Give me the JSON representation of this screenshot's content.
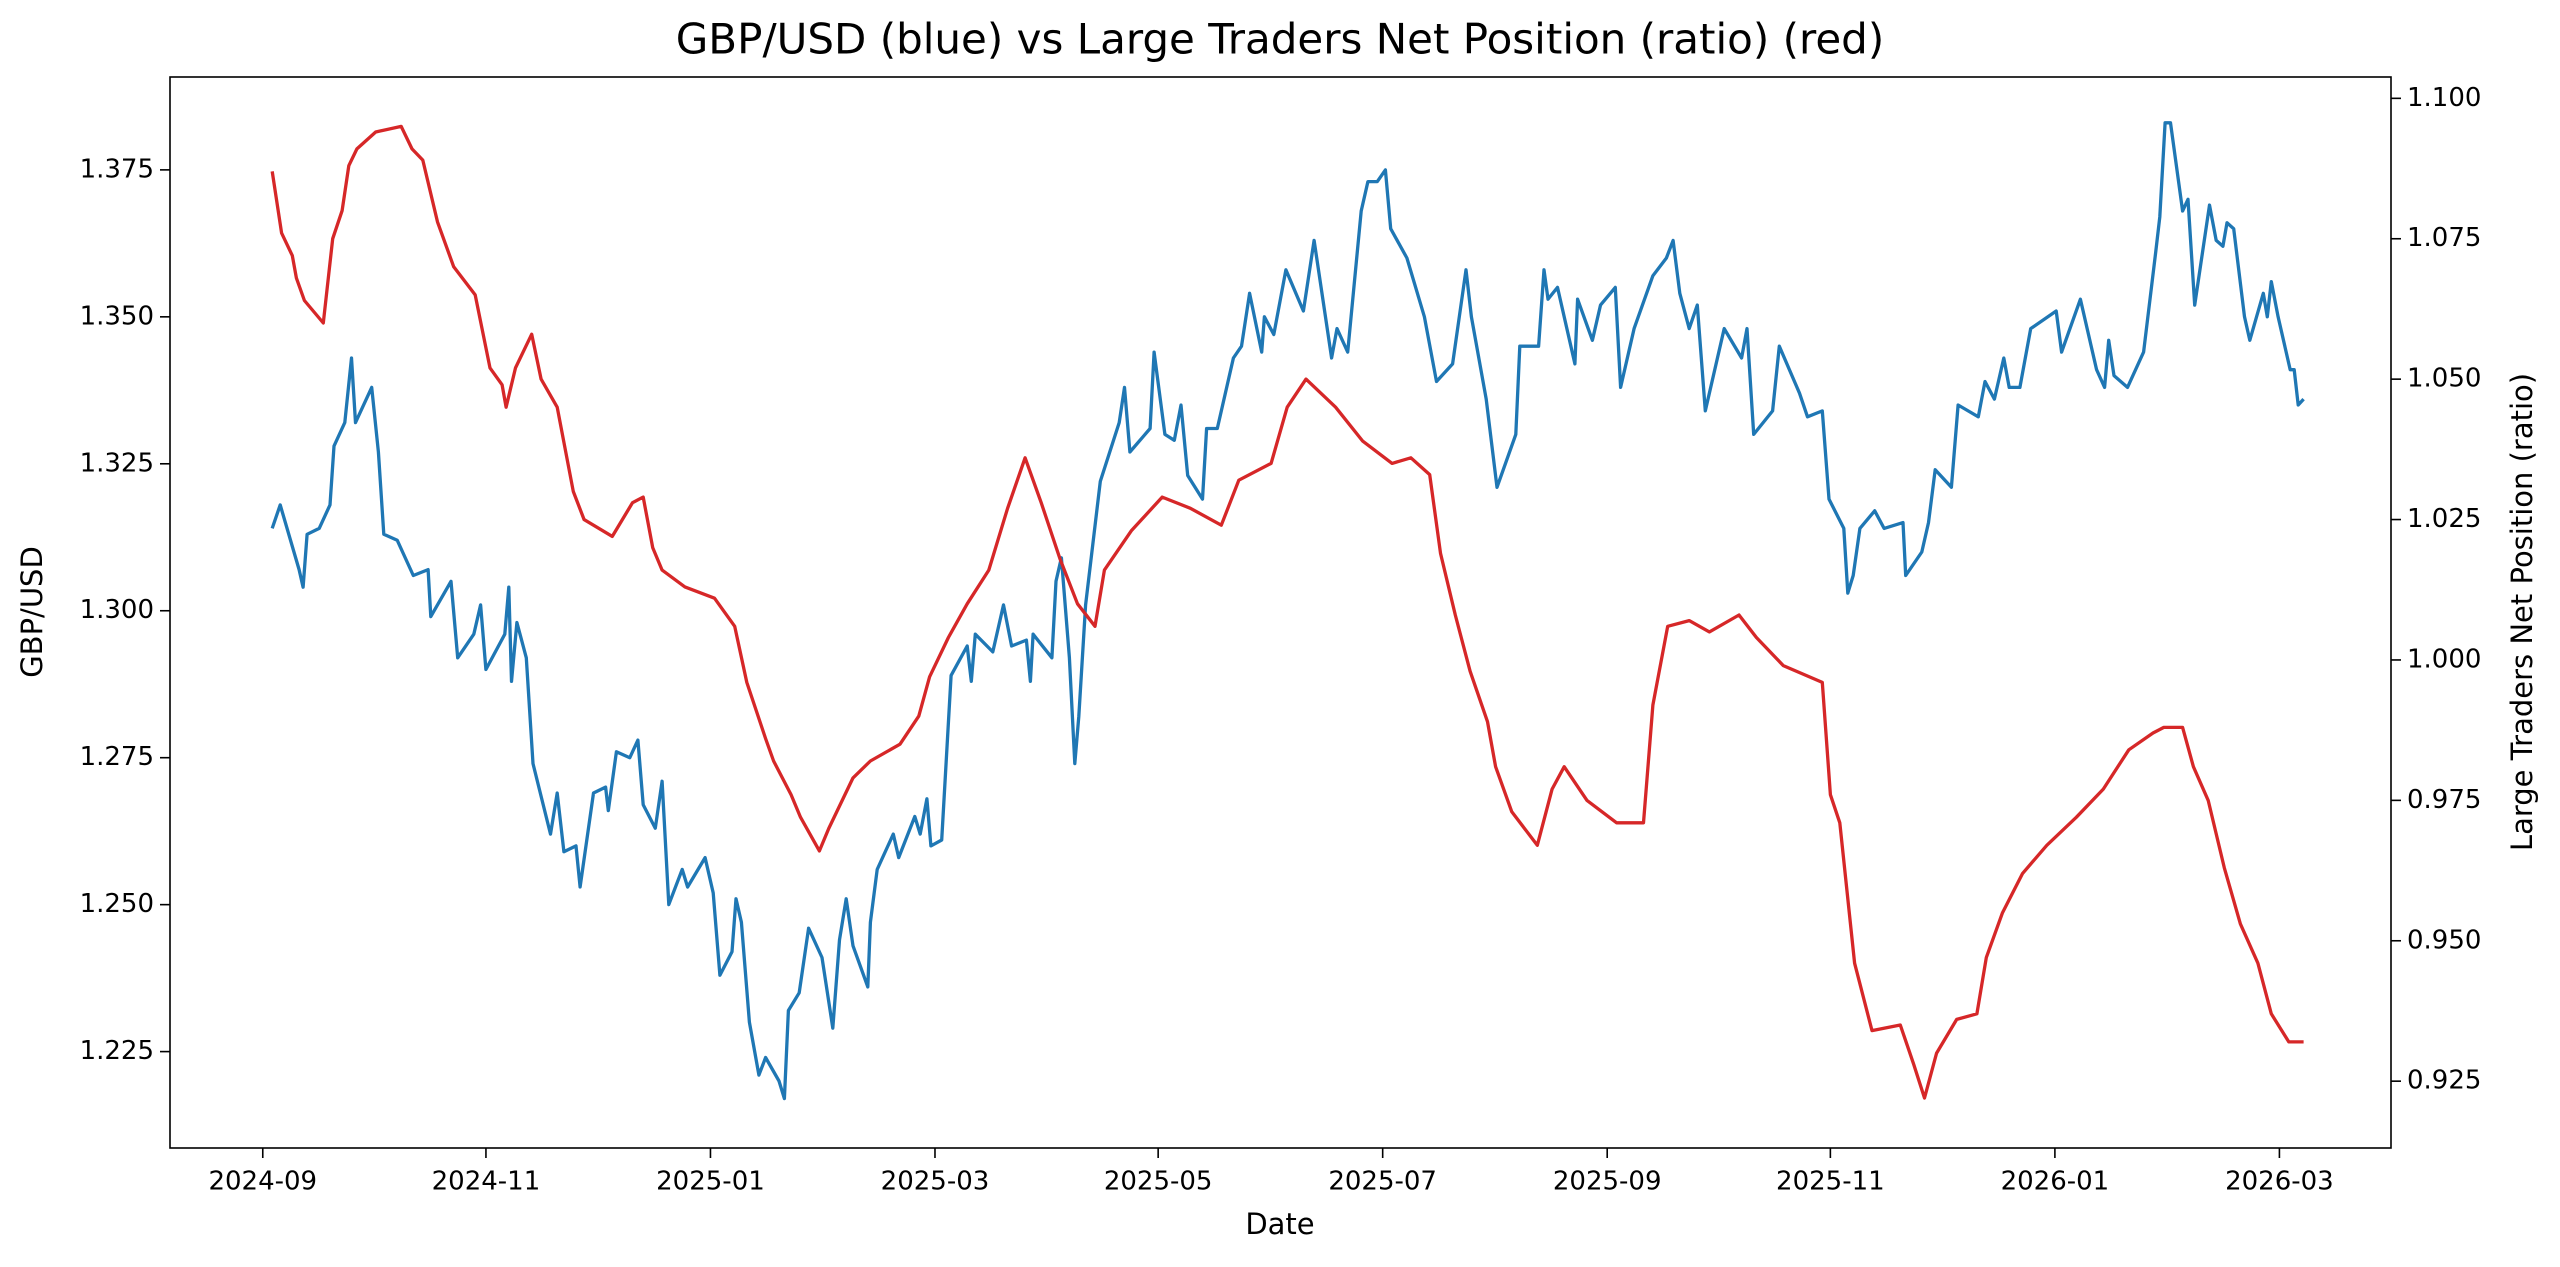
{
  "chart_data": {
    "type": "line",
    "title": "GBP/USD (blue) vs Large Traders Net Position (ratio) (red)",
    "xlabel": "Date",
    "ylabel": "GBP/USD",
    "y2label": "Large Traders Net Position (ratio)",
    "ylabel_color": "#1f77b4",
    "y2label_color": "#d62728",
    "xlim": [
      2024.598,
      2026.25
    ],
    "xticks": [
      {
        "value": 2024.667,
        "label": "2024-09"
      },
      {
        "value": 2024.833,
        "label": "2024-11"
      },
      {
        "value": 2025.0,
        "label": "2025-01"
      },
      {
        "value": 2025.167,
        "label": "2025-03"
      },
      {
        "value": 2025.333,
        "label": "2025-05"
      },
      {
        "value": 2025.5,
        "label": "2025-07"
      },
      {
        "value": 2025.667,
        "label": "2025-09"
      },
      {
        "value": 2025.833,
        "label": "2025-11"
      },
      {
        "value": 2026.0,
        "label": "2026-01"
      },
      {
        "value": 2026.167,
        "label": "2026-03"
      }
    ],
    "ylim": [
      1.2086,
      1.3908
    ],
    "yticks": [
      1.225,
      {
        "value": 1.25,
        "label": "1.250"
      },
      1.275,
      {
        "value": 1.3,
        "label": "1.300"
      },
      1.325,
      {
        "value": 1.35,
        "label": "1.350"
      },
      1.375
    ],
    "y2lim": [
      0.9131,
      1.1038
    ],
    "y2ticks": [
      0.925,
      {
        "value": 0.95,
        "label": "0.950"
      },
      0.975,
      {
        "value": 1.0,
        "label": "1.000"
      },
      1.025,
      {
        "value": 1.05,
        "label": "1.050"
      },
      1.075,
      {
        "value": 1.1,
        "label": "1.100"
      }
    ],
    "grid": false,
    "series": [
      {
        "color": "#1f77b4",
        "axis": "y",
        "x": [
          2024.674,
          2024.68,
          2024.694,
          2024.697,
          2024.7,
          2024.709,
          2024.717,
          2024.72,
          2024.728,
          2024.733,
          2024.736,
          2024.748,
          2024.753,
          2024.757,
          2024.767,
          2024.779,
          2024.79,
          2024.792,
          2024.807,
          2024.812,
          2024.824,
          2024.829,
          2024.833,
          2024.847,
          2024.85,
          2024.852,
          2024.856,
          2024.863,
          2024.868,
          2024.881,
          2024.886,
          2024.891,
          2024.9,
          2024.903,
          2024.913,
          2024.922,
          2024.924,
          2024.93,
          2024.94,
          2024.946,
          2024.95,
          2024.959,
          2024.964,
          2024.969,
          2024.979,
          2024.983,
          2024.996,
          2025.002,
          2025.007,
          2025.016,
          2025.019,
          2025.023,
          2025.029,
          2025.036,
          2025.041,
          2025.051,
          2025.055,
          2025.058,
          2025.066,
          2025.073,
          2025.083,
          2025.091,
          2025.096,
          2025.101,
          2025.106,
          2025.117,
          2025.119,
          2025.124,
          2025.136,
          2025.14,
          2025.152,
          2025.156,
          2025.161,
          2025.164,
          2025.172,
          2025.179,
          2025.191,
          2025.194,
          2025.197,
          2025.21,
          2025.218,
          2025.224,
          2025.235,
          2025.238,
          2025.24,
          2025.254,
          2025.257,
          2025.261,
          2025.267,
          2025.271,
          2025.274,
          2025.279,
          2025.29,
          2025.304,
          2025.308,
          2025.312,
          2025.327,
          2025.33,
          2025.338,
          2025.345,
          2025.35,
          2025.355,
          2025.366,
          2025.369,
          2025.377,
          2025.389,
          2025.395,
          2025.401,
          2025.41,
          2025.412,
          2025.419,
          2025.428,
          2025.441,
          2025.449,
          2025.462,
          2025.466,
          2025.474,
          2025.484,
          2025.489,
          2025.496,
          2025.502,
          2025.506,
          2025.518,
          2025.531,
          2025.54,
          2025.552,
          2025.562,
          2025.566,
          2025.577,
          2025.585,
          2025.599,
          2025.602,
          2025.616,
          2025.62,
          2025.623,
          2025.63,
          2025.643,
          2025.645,
          2025.656,
          2025.662,
          2025.673,
          2025.677,
          2025.687,
          2025.701,
          2025.711,
          2025.716,
          2025.721,
          2025.728,
          2025.734,
          2025.74,
          2025.754,
          2025.767,
          2025.771,
          2025.776,
          2025.79,
          2025.795,
          2025.81,
          2025.816,
          2025.827,
          2025.832,
          2025.843,
          2025.846,
          2025.85,
          2025.855,
          2025.866,
          2025.873,
          2025.887,
          2025.889,
          2025.901,
          2025.906,
          2025.911,
          2025.923,
          2025.928,
          2025.943,
          2025.948,
          2025.955,
          2025.962,
          2025.966,
          2025.974,
          2025.982,
          2026.001,
          2026.005,
          2026.019,
          2026.031,
          2026.037,
          2026.04,
          2026.044,
          2026.054,
          2026.066,
          2026.075,
          2026.078,
          2026.082,
          2026.086,
          2026.095,
          2026.099,
          2026.104,
          2026.115,
          2026.12,
          2026.125,
          2026.128,
          2026.133,
          2026.141,
          2026.145,
          2026.155,
          2026.158,
          2026.161,
          2026.166,
          2026.175,
          2026.178,
          2026.181,
          2026.185
        ],
        "values": [
          1.314,
          1.318,
          1.307,
          1.304,
          1.313,
          1.314,
          1.318,
          1.328,
          1.332,
          1.343,
          1.332,
          1.338,
          1.327,
          1.313,
          1.312,
          1.306,
          1.307,
          1.299,
          1.305,
          1.292,
          1.296,
          1.301,
          1.29,
          1.296,
          1.304,
          1.288,
          1.298,
          1.292,
          1.274,
          1.262,
          1.269,
          1.259,
          1.26,
          1.253,
          1.269,
          1.27,
          1.266,
          1.276,
          1.275,
          1.278,
          1.267,
          1.263,
          1.271,
          1.25,
          1.256,
          1.253,
          1.258,
          1.252,
          1.238,
          1.242,
          1.251,
          1.247,
          1.23,
          1.221,
          1.224,
          1.22,
          1.217,
          1.232,
          1.235,
          1.246,
          1.241,
          1.229,
          1.244,
          1.251,
          1.243,
          1.236,
          1.247,
          1.256,
          1.262,
          1.258,
          1.265,
          1.262,
          1.268,
          1.26,
          1.261,
          1.289,
          1.294,
          1.288,
          1.296,
          1.293,
          1.301,
          1.294,
          1.295,
          1.288,
          1.296,
          1.292,
          1.305,
          1.309,
          1.292,
          1.274,
          1.282,
          1.301,
          1.322,
          1.332,
          1.338,
          1.327,
          1.331,
          1.344,
          1.33,
          1.329,
          1.335,
          1.323,
          1.319,
          1.331,
          1.331,
          1.343,
          1.345,
          1.354,
          1.344,
          1.35,
          1.347,
          1.358,
          1.351,
          1.363,
          1.343,
          1.348,
          1.344,
          1.368,
          1.373,
          1.373,
          1.375,
          1.365,
          1.36,
          1.35,
          1.339,
          1.342,
          1.358,
          1.35,
          1.336,
          1.321,
          1.33,
          1.345,
          1.345,
          1.358,
          1.353,
          1.355,
          1.342,
          1.353,
          1.346,
          1.352,
          1.355,
          1.338,
          1.348,
          1.357,
          1.36,
          1.363,
          1.354,
          1.348,
          1.352,
          1.334,
          1.348,
          1.343,
          1.348,
          1.33,
          1.334,
          1.345,
          1.337,
          1.333,
          1.334,
          1.319,
          1.314,
          1.303,
          1.306,
          1.314,
          1.317,
          1.314,
          1.315,
          1.306,
          1.31,
          1.315,
          1.324,
          1.321,
          1.335,
          1.333,
          1.339,
          1.336,
          1.343,
          1.338,
          1.338,
          1.348,
          1.351,
          1.344,
          1.353,
          1.341,
          1.338,
          1.346,
          1.34,
          1.338,
          1.344,
          1.361,
          1.367,
          1.383,
          1.383,
          1.368,
          1.37,
          1.352,
          1.369,
          1.363,
          1.362,
          1.366,
          1.365,
          1.35,
          1.346,
          1.354,
          1.35,
          1.356,
          1.35,
          1.341,
          1.341,
          1.335,
          1.336
        ]
      },
      {
        "color": "#d62728",
        "axis": "y2",
        "x": [
          2024.674,
          2024.681,
          2024.689,
          2024.692,
          2024.698,
          2024.712,
          2024.719,
          2024.726,
          2024.731,
          2024.737,
          2024.751,
          2024.77,
          2024.778,
          2024.786,
          2024.797,
          2024.809,
          2024.825,
          2024.836,
          2024.845,
          2024.848,
          2024.855,
          2024.867,
          2024.874,
          2024.886,
          2024.898,
          2024.906,
          2024.927,
          2024.942,
          2024.95,
          2024.957,
          2024.964,
          2024.981,
          2025.003,
          2025.018,
          2025.027,
          2025.041,
          2025.047,
          2025.06,
          2025.067,
          2025.081,
          2025.088,
          2025.106,
          2025.119,
          2025.141,
          2025.155,
          2025.163,
          2025.177,
          2025.191,
          2025.207,
          2025.221,
          2025.234,
          2025.246,
          2025.26,
          2025.273,
          2025.286,
          2025.293,
          2025.313,
          2025.336,
          2025.357,
          2025.38,
          2025.393,
          2025.417,
          2025.429,
          2025.443,
          2025.465,
          2025.485,
          2025.507,
          2025.521,
          2025.535,
          2025.543,
          2025.554,
          2025.565,
          2025.578,
          2025.584,
          2025.596,
          2025.615,
          2025.626,
          2025.635,
          2025.652,
          2025.674,
          2025.694,
          2025.701,
          2025.712,
          2025.728,
          2025.743,
          2025.765,
          2025.778,
          2025.798,
          2025.827,
          2025.833,
          2025.84,
          2025.851,
          2025.864,
          2025.885,
          2025.895,
          2025.903,
          2025.912,
          2025.927,
          2025.942,
          2025.949,
          2025.961,
          2025.976,
          2025.994,
          2026.016,
          2026.036,
          2026.055,
          2026.073,
          2026.081,
          2026.095,
          2026.103,
          2026.114,
          2026.126,
          2026.138,
          2026.151,
          2026.161,
          2026.174,
          2026.185
        ],
        "values": [
          1.087,
          1.076,
          1.072,
          1.068,
          1.064,
          1.06,
          1.075,
          1.08,
          1.088,
          1.091,
          1.094,
          1.095,
          1.091,
          1.089,
          1.078,
          1.07,
          1.065,
          1.052,
          1.049,
          1.045,
          1.052,
          1.058,
          1.05,
          1.045,
          1.03,
          1.025,
          1.022,
          1.028,
          1.029,
          1.02,
          1.016,
          1.013,
          1.011,
          1.006,
          0.996,
          0.986,
          0.982,
          0.976,
          0.972,
          0.966,
          0.97,
          0.979,
          0.982,
          0.985,
          0.99,
          0.997,
          1.004,
          1.01,
          1.016,
          1.027,
          1.036,
          1.028,
          1.018,
          1.01,
          1.006,
          1.016,
          1.023,
          1.029,
          1.027,
          1.024,
          1.032,
          1.035,
          1.045,
          1.05,
          1.045,
          1.039,
          1.035,
          1.036,
          1.033,
          1.019,
          1.008,
          0.998,
          0.989,
          0.981,
          0.973,
          0.967,
          0.977,
          0.981,
          0.975,
          0.971,
          0.971,
          0.992,
          1.006,
          1.007,
          1.005,
          1.008,
          1.004,
          0.999,
          0.996,
          0.976,
          0.971,
          0.946,
          0.934,
          0.935,
          0.928,
          0.922,
          0.93,
          0.936,
          0.937,
          0.947,
          0.955,
          0.962,
          0.967,
          0.972,
          0.977,
          0.984,
          0.987,
          0.988,
          0.988,
          0.981,
          0.975,
          0.963,
          0.953,
          0.946,
          0.937,
          0.932,
          0.932
        ]
      }
    ]
  }
}
